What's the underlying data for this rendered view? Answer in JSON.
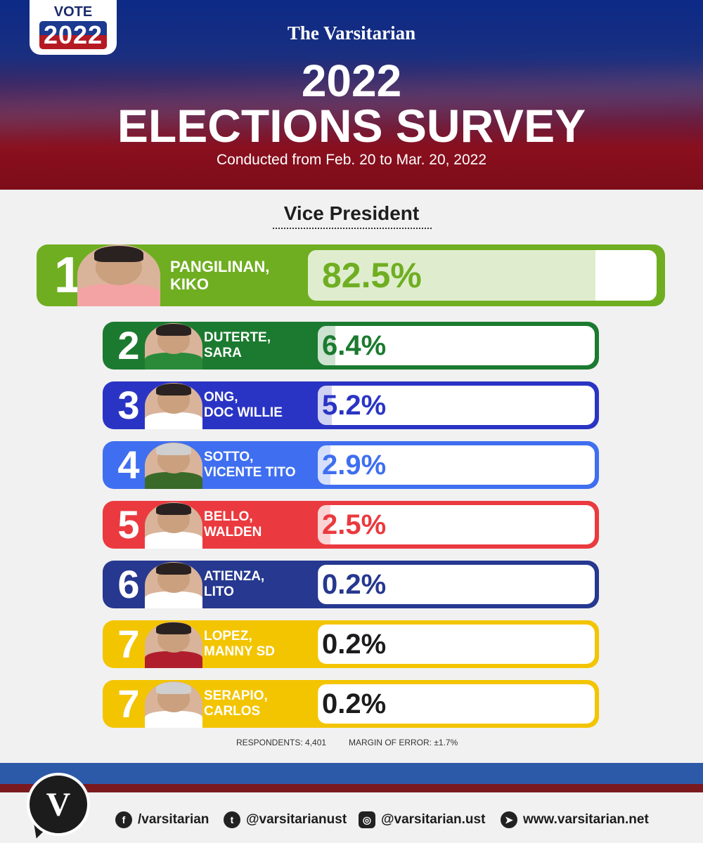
{
  "header": {
    "badge_word": "VOTE",
    "badge_year": "2022",
    "brand": "The Varsitarian",
    "title_year": "2022",
    "title_main": "ELECTIONS SURVEY",
    "subtitle": "Conducted from Feb. 20 to Mar. 20, 2022"
  },
  "section_title": "Vice President",
  "footnotes": {
    "respondents": "RESPONDENTS: 4,401",
    "margin": "MARGIN OF ERROR: ±1.7%"
  },
  "footer": {
    "facebook": "/varsitarian",
    "twitter": "@varsitarianust",
    "instagram": "@varsitarian.ust",
    "website": "www.varsitarian.net",
    "logo_letter": "V"
  },
  "colors": {
    "rank1": "#6fae21",
    "rank2": "#1b7a2f",
    "rank3": "#2a34c4",
    "rank4": "#3f6ff0",
    "rank5": "#ea3a3f",
    "rank6": "#26388f",
    "rank7": "#f3c400"
  },
  "chart_data": {
    "type": "bar",
    "title": "Vice President",
    "unit": "%",
    "candidates": [
      {
        "rank": "1",
        "last": "PANGILINAN,",
        "first": "KIKO",
        "value": 82.5,
        "label": "82.5%",
        "color": "#6fae21"
      },
      {
        "rank": "2",
        "last": "DUTERTE,",
        "first": "SARA",
        "value": 6.4,
        "label": "6.4%",
        "color": "#1b7a2f"
      },
      {
        "rank": "3",
        "last": "ONG,",
        "first": "DOC WILLIE",
        "value": 5.2,
        "label": "5.2%",
        "color": "#2a34c4"
      },
      {
        "rank": "4",
        "last": "SOTTO,",
        "first": "VICENTE TITO",
        "value": 2.9,
        "label": "2.9%",
        "color": "#3f6ff0"
      },
      {
        "rank": "5",
        "last": "BELLO,",
        "first": "WALDEN",
        "value": 2.5,
        "label": "2.5%",
        "color": "#ea3a3f"
      },
      {
        "rank": "6",
        "last": "ATIENZA,",
        "first": "LITO",
        "value": 0.2,
        "label": "0.2%",
        "color": "#26388f"
      },
      {
        "rank": "7",
        "last": "LOPEZ,",
        "first": "MANNY SD",
        "value": 0.2,
        "label": "0.2%",
        "color": "#f3c400"
      },
      {
        "rank": "7",
        "last": "SERAPIO,",
        "first": "CARLOS",
        "value": 0.2,
        "label": "0.2%",
        "color": "#f3c400"
      }
    ]
  }
}
